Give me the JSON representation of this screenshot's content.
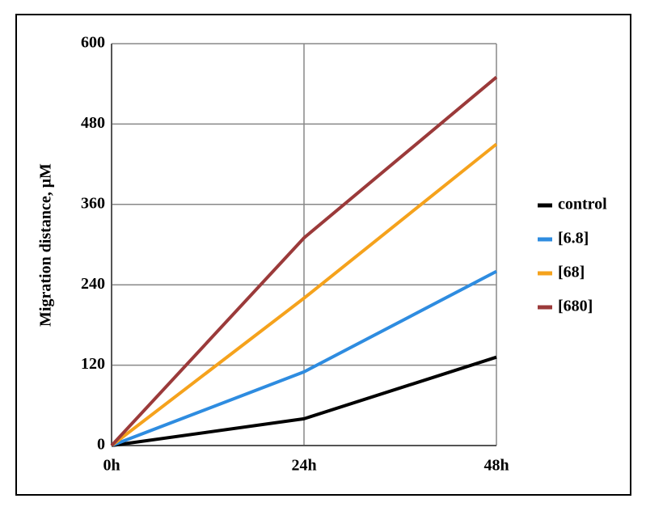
{
  "chart_data": {
    "type": "line",
    "y_label": "Migration distance, μM",
    "categories": [
      "0h",
      "24h",
      "48h"
    ],
    "series": [
      {
        "name": "control",
        "color": "#000000",
        "values": [
          0,
          40,
          132
        ]
      },
      {
        "name": "[6.8]",
        "color": "#2e8ce0",
        "values": [
          0,
          110,
          260
        ]
      },
      {
        "name": "[68]",
        "color": "#f5a21c",
        "values": [
          0,
          220,
          450
        ]
      },
      {
        "name": "[680]",
        "color": "#9b3a3a",
        "values": [
          0,
          310,
          550
        ]
      }
    ],
    "ylim": [
      0,
      600
    ],
    "yticks": [
      0,
      120,
      240,
      360,
      480,
      600
    ],
    "grid": true,
    "legend": "right"
  }
}
